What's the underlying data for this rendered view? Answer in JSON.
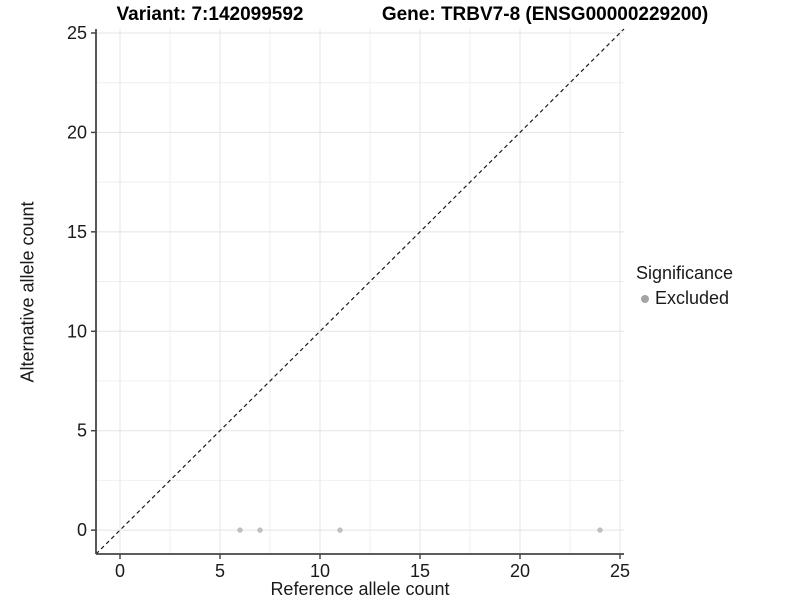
{
  "chart_data": {
    "type": "scatter",
    "title_left": "Variant: 7:142099592",
    "title_right": "Gene: TRBV7-8 (ENSG00000229200)",
    "xlabel": "Reference allele count",
    "ylabel": "Alternative allele count",
    "xlim": [
      -1.2,
      25.2
    ],
    "ylim": [
      -1.2,
      25.2
    ],
    "x_ticks": [
      0,
      5,
      10,
      15,
      20,
      25
    ],
    "y_ticks": [
      0,
      5,
      10,
      15,
      20,
      25
    ],
    "x_minor_ticks": [
      2.5,
      7.5,
      12.5,
      17.5,
      22.5
    ],
    "y_minor_ticks": [
      2.5,
      7.5,
      12.5,
      17.5,
      22.5
    ],
    "grid": "on",
    "series": [
      {
        "name": "Excluded",
        "color": "#bfbfbf",
        "points": [
          [
            6,
            0
          ],
          [
            7,
            0
          ],
          [
            11,
            0
          ],
          [
            24,
            0
          ]
        ]
      }
    ],
    "reference_line": {
      "slope": 1,
      "intercept": 0,
      "style": "dashed",
      "color": "#1a1a1a"
    },
    "legend": {
      "title": "Significance",
      "position": "right",
      "entries": [
        {
          "label": "Excluded",
          "marker": "circle-icon",
          "color": "#a4a4a4"
        }
      ]
    },
    "style": {
      "grid_major_color": "#e4e4e4",
      "grid_minor_color": "#efefef",
      "axis_color": "#464646",
      "tick_text_color": "#1a1a1a",
      "background_color": "#ffffff"
    }
  }
}
